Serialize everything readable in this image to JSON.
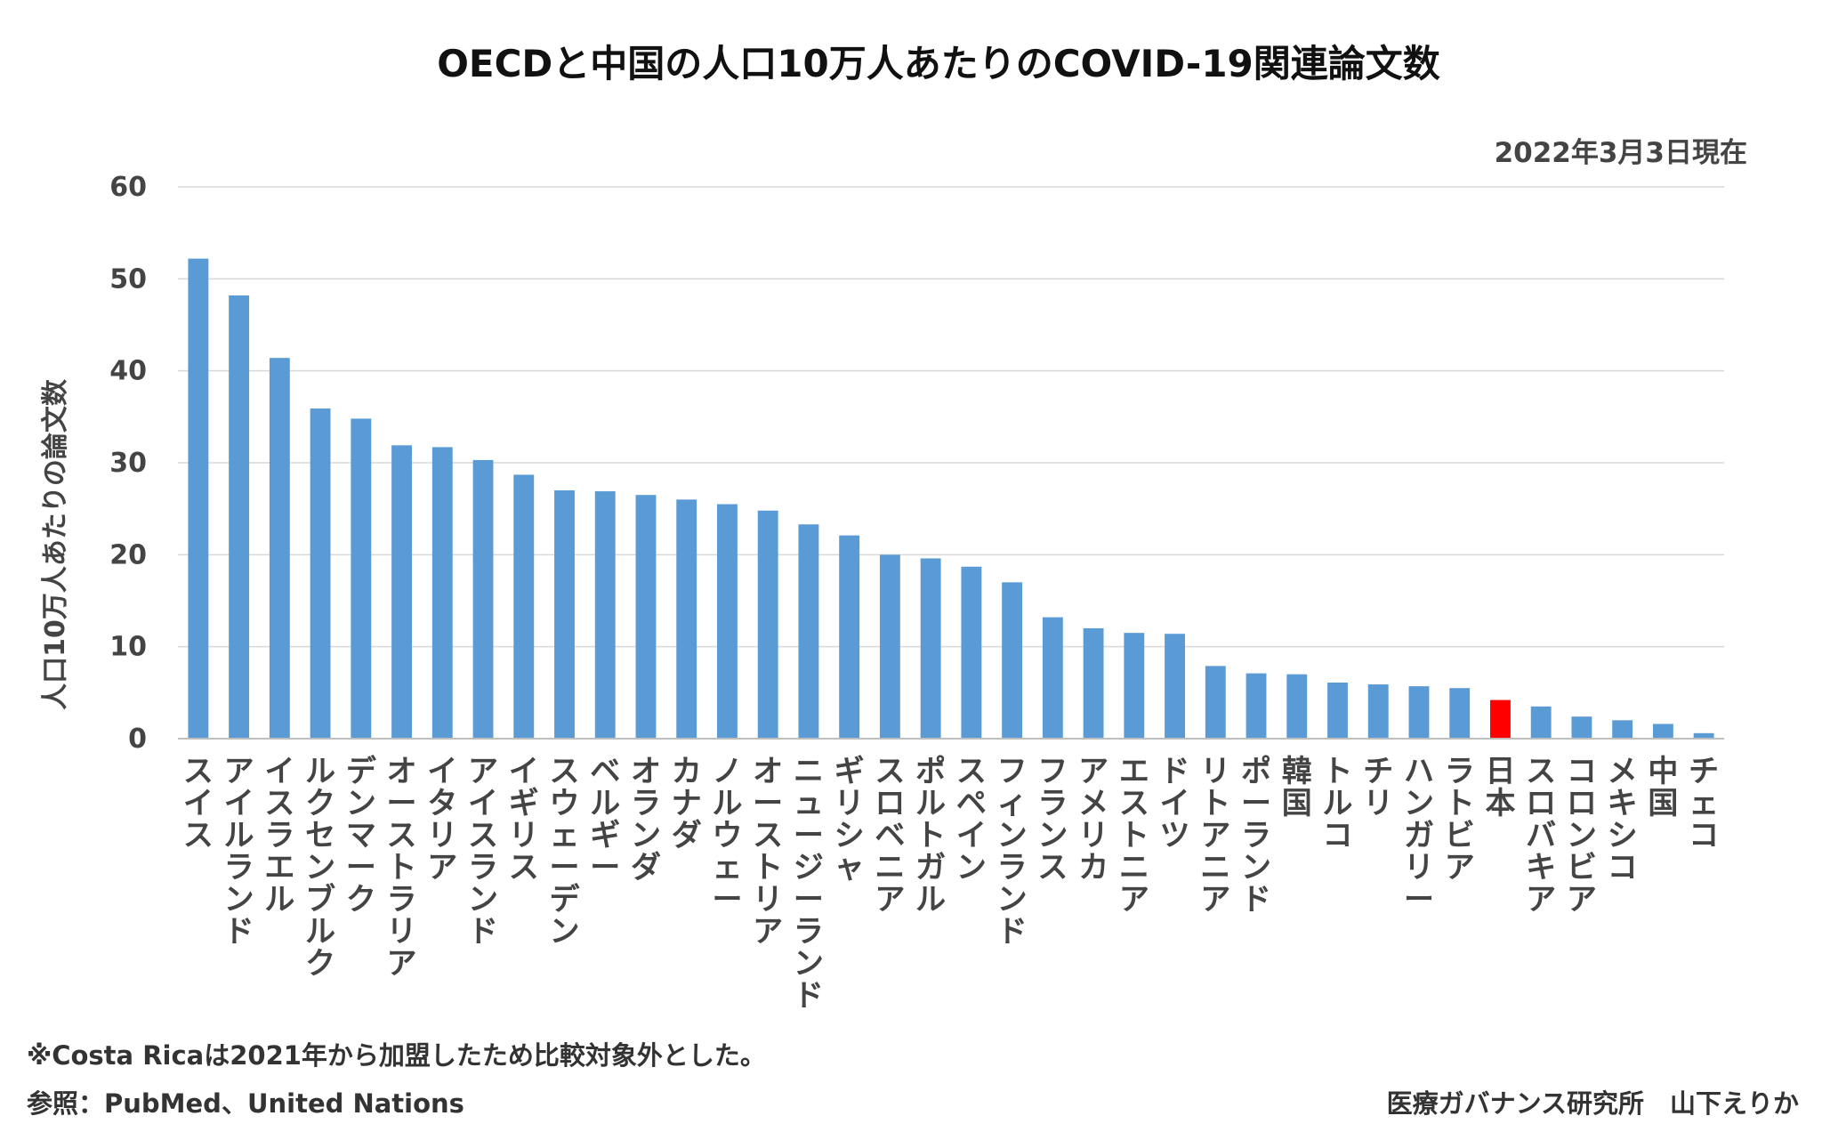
{
  "chart_data": {
    "type": "bar",
    "title": "OECDと中国の人口10万人あたりのCOVID-19関連論文数",
    "date_note": "2022年3月3日現在",
    "ylabel": "人口10万人あたりの論文数",
    "xlabel": "",
    "ylim": [
      0,
      60
    ],
    "yticks": [
      0,
      10,
      20,
      30,
      40,
      50,
      60
    ],
    "grid": true,
    "legend": "none",
    "bar_color": "#5b9bd5",
    "highlight_color": "#ff0000",
    "highlight_category": "日本",
    "categories": [
      "スイス",
      "アイルランド",
      "イスラエル",
      "ルクセンブルク",
      "デンマーク",
      "オーストラリア",
      "イタリア",
      "アイスランド",
      "イギリス",
      "スウェーデン",
      "ベルギー",
      "オランダ",
      "カナダ",
      "ノルウェー",
      "オーストリア",
      "ニュージーランド",
      "ギリシャ",
      "スロベニア",
      "ポルトガル",
      "スペイン",
      "フィンランド",
      "フランス",
      "アメリカ",
      "エストニア",
      "ドイツ",
      "リトアニア",
      "ポーランド",
      "韓国",
      "トルコ",
      "チリ",
      "ハンガリー",
      "ラトビア",
      "日本",
      "スロバキア",
      "コロンビア",
      "メキシコ",
      "中国",
      "チェコ"
    ],
    "values": [
      52.2,
      48.2,
      41.4,
      35.9,
      34.8,
      31.9,
      31.7,
      30.3,
      28.7,
      27.0,
      26.9,
      26.5,
      26.0,
      25.5,
      24.8,
      23.3,
      22.1,
      20.0,
      19.6,
      18.7,
      17.0,
      13.2,
      12.0,
      11.5,
      11.4,
      7.9,
      7.1,
      7.0,
      6.1,
      5.9,
      5.7,
      5.5,
      4.2,
      3.5,
      2.4,
      2.0,
      1.6,
      0.6
    ]
  },
  "footnotes": {
    "note": "※Costa Ricaは2021年から加盟したため比較対象外とした。",
    "source": "参照：PubMed、United Nations",
    "credit": "医療ガバナンス研究所　山下えりか"
  }
}
